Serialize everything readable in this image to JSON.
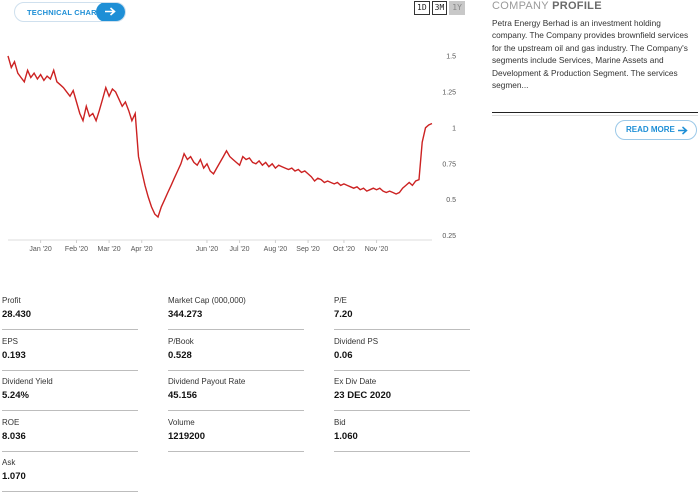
{
  "technical_chart_button": {
    "label": "TECHNICAL CHART",
    "icon": "arrow-right-icon"
  },
  "ranges": [
    "1D",
    "3M",
    "1Y"
  ],
  "active_range": "1Y",
  "chart_data": {
    "type": "line",
    "x_ticks": [
      "Jan '20",
      "Feb '20",
      "Mar '20",
      "Apr '20",
      "Jun '20",
      "Jul '20",
      "Aug '20",
      "Sep '20",
      "Oct '20",
      "Nov '20"
    ],
    "y_ticks": [
      1.5,
      1.25,
      1,
      0.75,
      0.5,
      0.25
    ],
    "ylim": [
      0.22,
      1.75
    ],
    "line_color": "#cc2222",
    "series": [
      {
        "values": [
          1.5,
          1.42,
          1.46,
          1.38,
          1.35,
          1.32,
          1.4,
          1.35,
          1.38,
          1.34,
          1.37,
          1.33,
          1.36,
          1.34,
          1.4,
          1.32,
          1.3,
          1.28,
          1.25,
          1.22,
          1.26,
          1.18,
          1.1,
          1.05,
          1.15,
          1.08,
          1.1,
          1.05,
          1.12,
          1.2,
          1.28,
          1.22,
          1.27,
          1.25,
          1.2,
          1.15,
          1.18,
          1.12,
          1.05,
          1.1,
          0.8,
          0.7,
          0.6,
          0.52,
          0.45,
          0.4,
          0.38,
          0.45,
          0.5,
          0.55,
          0.6,
          0.65,
          0.7,
          0.75,
          0.82,
          0.78,
          0.8,
          0.76,
          0.74,
          0.78,
          0.72,
          0.75,
          0.7,
          0.68,
          0.72,
          0.76,
          0.8,
          0.84,
          0.8,
          0.78,
          0.76,
          0.74,
          0.8,
          0.78,
          0.79,
          0.76,
          0.75,
          0.77,
          0.74,
          0.76,
          0.73,
          0.75,
          0.72,
          0.74,
          0.73,
          0.72,
          0.71,
          0.72,
          0.7,
          0.71,
          0.69,
          0.7,
          0.68,
          0.66,
          0.63,
          0.65,
          0.64,
          0.62,
          0.63,
          0.62,
          0.61,
          0.62,
          0.6,
          0.61,
          0.6,
          0.59,
          0.58,
          0.59,
          0.57,
          0.58,
          0.56,
          0.57,
          0.58,
          0.57,
          0.58,
          0.56,
          0.55,
          0.56,
          0.55,
          0.54,
          0.55,
          0.58,
          0.6,
          0.62,
          0.6,
          0.63,
          0.64,
          0.9,
          1.0,
          1.02,
          1.03
        ]
      }
    ]
  },
  "stats": [
    {
      "label": "Profit",
      "value": "28.430"
    },
    {
      "label": "Market Cap (000,000)",
      "value": "344.273"
    },
    {
      "label": "P/E",
      "value": "7.20"
    },
    {
      "label": "EPS",
      "value": "0.193"
    },
    {
      "label": "P/Book",
      "value": "0.528"
    },
    {
      "label": "Dividend PS",
      "value": "0.06"
    },
    {
      "label": "Dividend Yield",
      "value": "5.24%"
    },
    {
      "label": "Dividend Payout Rate",
      "value": "45.156"
    },
    {
      "label": "Ex Div Date",
      "value": "23 DEC 2020"
    },
    {
      "label": "ROE",
      "value": "8.036"
    },
    {
      "label": "Volume",
      "value": "1219200"
    },
    {
      "label": "Bid",
      "value": "1.060"
    },
    {
      "label": "Ask",
      "value": "1.070"
    }
  ],
  "company_profile": {
    "title_light": "COMPANY",
    "title_bold": "PROFILE",
    "text": "Petra Energy Berhad is an investment holding company. The Company provides brownfield services for the upstream oil and gas industry. The Company's segments include Services, Marine Assets and Development & Production Segment. The services segmen...",
    "read_more": "READ MORE"
  }
}
